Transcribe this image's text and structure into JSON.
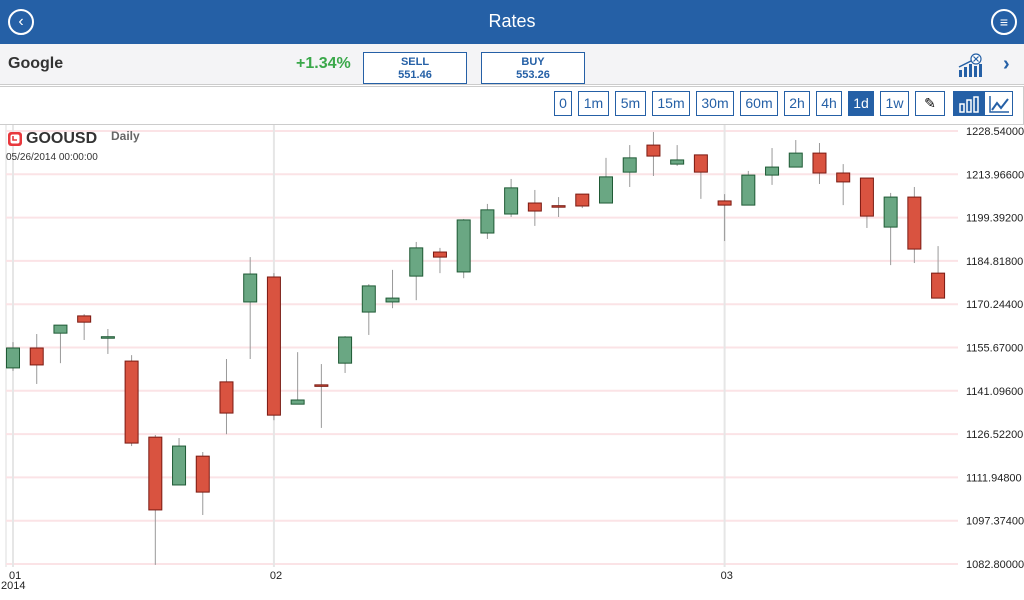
{
  "header": {
    "title": "Rates",
    "back_icon": "back-icon",
    "menu_icon": "menu-icon"
  },
  "instrument": {
    "name": "Google",
    "change": "+1.34%",
    "sell_label": "SELL",
    "sell_price": "551.46",
    "buy_label": "BUY",
    "buy_price": "553.26"
  },
  "toolbar": {
    "timeframes": [
      "0",
      "1m",
      "5m",
      "15m",
      "30m",
      "60m",
      "2h",
      "4h",
      "1d",
      "1w"
    ],
    "selected": "1d"
  },
  "chart_info": {
    "symbol": "GOOUSD",
    "period": "Daily",
    "datetime": "05/26/2014 00:00:00"
  },
  "colors": {
    "accent": "#2560a6",
    "up": "#6aa783",
    "down": "#d95340",
    "positive": "#3aa84a"
  },
  "chart_data": {
    "type": "candlestick",
    "ylim": [
      1082.8,
      1228.54
    ],
    "y_ticks": [
      "1228.54000",
      "1213.96600",
      "1199.39200",
      "1184.81800",
      "1170.24400",
      "1155.67000",
      "1141.09600",
      "1126.52200",
      "1111.94800",
      "1097.37400",
      "1082.80000"
    ],
    "x_labels": [
      {
        "index": 0,
        "label": "01",
        "sub": "2014"
      },
      {
        "index": 11,
        "label": "02"
      },
      {
        "index": 30,
        "label": "03"
      }
    ],
    "ohlc": [
      [
        1148.8,
        1157.5,
        1147.8,
        1155.5
      ],
      [
        1155.5,
        1160.2,
        1143.4,
        1149.8
      ],
      [
        1160.5,
        1163.2,
        1150.4,
        1163.2
      ],
      [
        1166.3,
        1166.9,
        1158.2,
        1164.2
      ],
      [
        1159.2,
        1161.9,
        1153.5,
        1159.3
      ],
      [
        1151.1,
        1153.1,
        1122.5,
        1123.5
      ],
      [
        1125.5,
        1126.2,
        1082.5,
        1101.0
      ],
      [
        1109.4,
        1125.2,
        1109.4,
        1122.5
      ],
      [
        1119.1,
        1120.5,
        1099.3,
        1107.0
      ],
      [
        1144.1,
        1151.8,
        1126.5,
        1133.6
      ],
      [
        1171.0,
        1186.1,
        1151.8,
        1180.4
      ],
      [
        1179.4,
        1180.7,
        1131.2,
        1132.9
      ],
      [
        1136.6,
        1154.1,
        1136.6,
        1138.0
      ],
      [
        1143.1,
        1150.1,
        1128.6,
        1143.0
      ],
      [
        1150.4,
        1159.5,
        1147.1,
        1159.2
      ],
      [
        1167.6,
        1177.0,
        1159.9,
        1176.4
      ],
      [
        1171.0,
        1181.8,
        1168.9,
        1172.3
      ],
      [
        1179.7,
        1191.2,
        1171.6,
        1189.2
      ],
      [
        1187.8,
        1189.2,
        1180.7,
        1186.1
      ],
      [
        1181.1,
        1198.9,
        1179.0,
        1198.6
      ],
      [
        1194.2,
        1204.0,
        1192.2,
        1202.0
      ],
      [
        1200.6,
        1212.4,
        1199.6,
        1209.4
      ],
      [
        1204.3,
        1208.7,
        1196.6,
        1201.6
      ],
      [
        1203.4,
        1206.3,
        1199.6,
        1203.3
      ],
      [
        1207.3,
        1207.3,
        1202.6,
        1203.3
      ],
      [
        1204.3,
        1219.5,
        1204.3,
        1213.1
      ],
      [
        1214.7,
        1223.8,
        1209.7,
        1219.5
      ],
      [
        1223.8,
        1228.2,
        1213.4,
        1220.1
      ],
      [
        1217.4,
        1223.8,
        1216.8,
        1218.8
      ],
      [
        1220.5,
        1220.5,
        1205.7,
        1214.7
      ],
      [
        1205.0,
        1207.3,
        1191.5,
        1203.6
      ],
      [
        1203.6,
        1215.1,
        1203.6,
        1213.7
      ],
      [
        1213.7,
        1222.8,
        1210.4,
        1216.4
      ],
      [
        1216.4,
        1225.5,
        1216.4,
        1221.1
      ],
      [
        1221.1,
        1224.5,
        1210.7,
        1214.4
      ],
      [
        1214.4,
        1217.4,
        1203.6,
        1211.4
      ],
      [
        1212.7,
        1212.7,
        1195.9,
        1199.9
      ],
      [
        1196.2,
        1207.7,
        1183.4,
        1206.3
      ],
      [
        1206.3,
        1209.7,
        1184.1,
        1188.8
      ],
      [
        1180.7,
        1189.8,
        1172.3,
        1172.3
      ]
    ]
  }
}
